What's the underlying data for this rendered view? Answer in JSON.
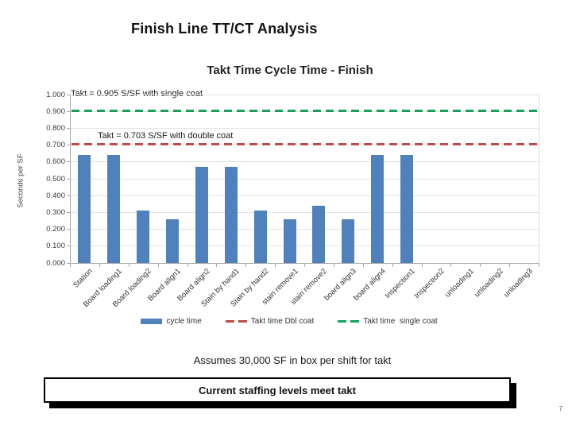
{
  "slide": {
    "title": "Finish Line TT/CT Analysis",
    "footnote": "Assumes 30,000 SF in box per shift for takt",
    "callout": "Current staffing levels meet takt",
    "page_number": "7"
  },
  "chart_data": {
    "type": "bar",
    "title": "Takt Time Cycle Time - Finish",
    "xlabel": "",
    "ylabel": "Seconds per SF",
    "ylim": [
      0,
      1.0
    ],
    "ytick_step": 0.1,
    "ytick_decimals": 3,
    "grid": true,
    "legend_position": "bottom",
    "categories": [
      "Station",
      "Board loading1",
      "Board loading2",
      "Board align1",
      "Board align2",
      "Stain by hand1",
      "Stain by hand2",
      "stain remove1",
      "stain remove2",
      "board align3",
      "board align4",
      "Inspection1",
      "Inspection2",
      "unloading1",
      "unloading2",
      "unloading3"
    ],
    "series": [
      {
        "name": "cycle time",
        "type": "bar",
        "color": "#4f81bd",
        "values": [
          0.64,
          0.64,
          0.31,
          0.26,
          0.57,
          0.57,
          0.31,
          0.26,
          0.34,
          0.26,
          0.64,
          0.64,
          0,
          0,
          0,
          0
        ]
      },
      {
        "name": "Takt time Dbl coat",
        "type": "dashed-line",
        "color": "#be4b48",
        "value": 0.703
      },
      {
        "name": "Takt time  single coat",
        "type": "dashed-line",
        "color": "#19a15b",
        "value": 0.905
      }
    ],
    "annotations": [
      {
        "text": "Takt = 0.905 S/SF with single coat"
      },
      {
        "text": "Takt = 0.703 S/SF with double coat"
      }
    ]
  }
}
